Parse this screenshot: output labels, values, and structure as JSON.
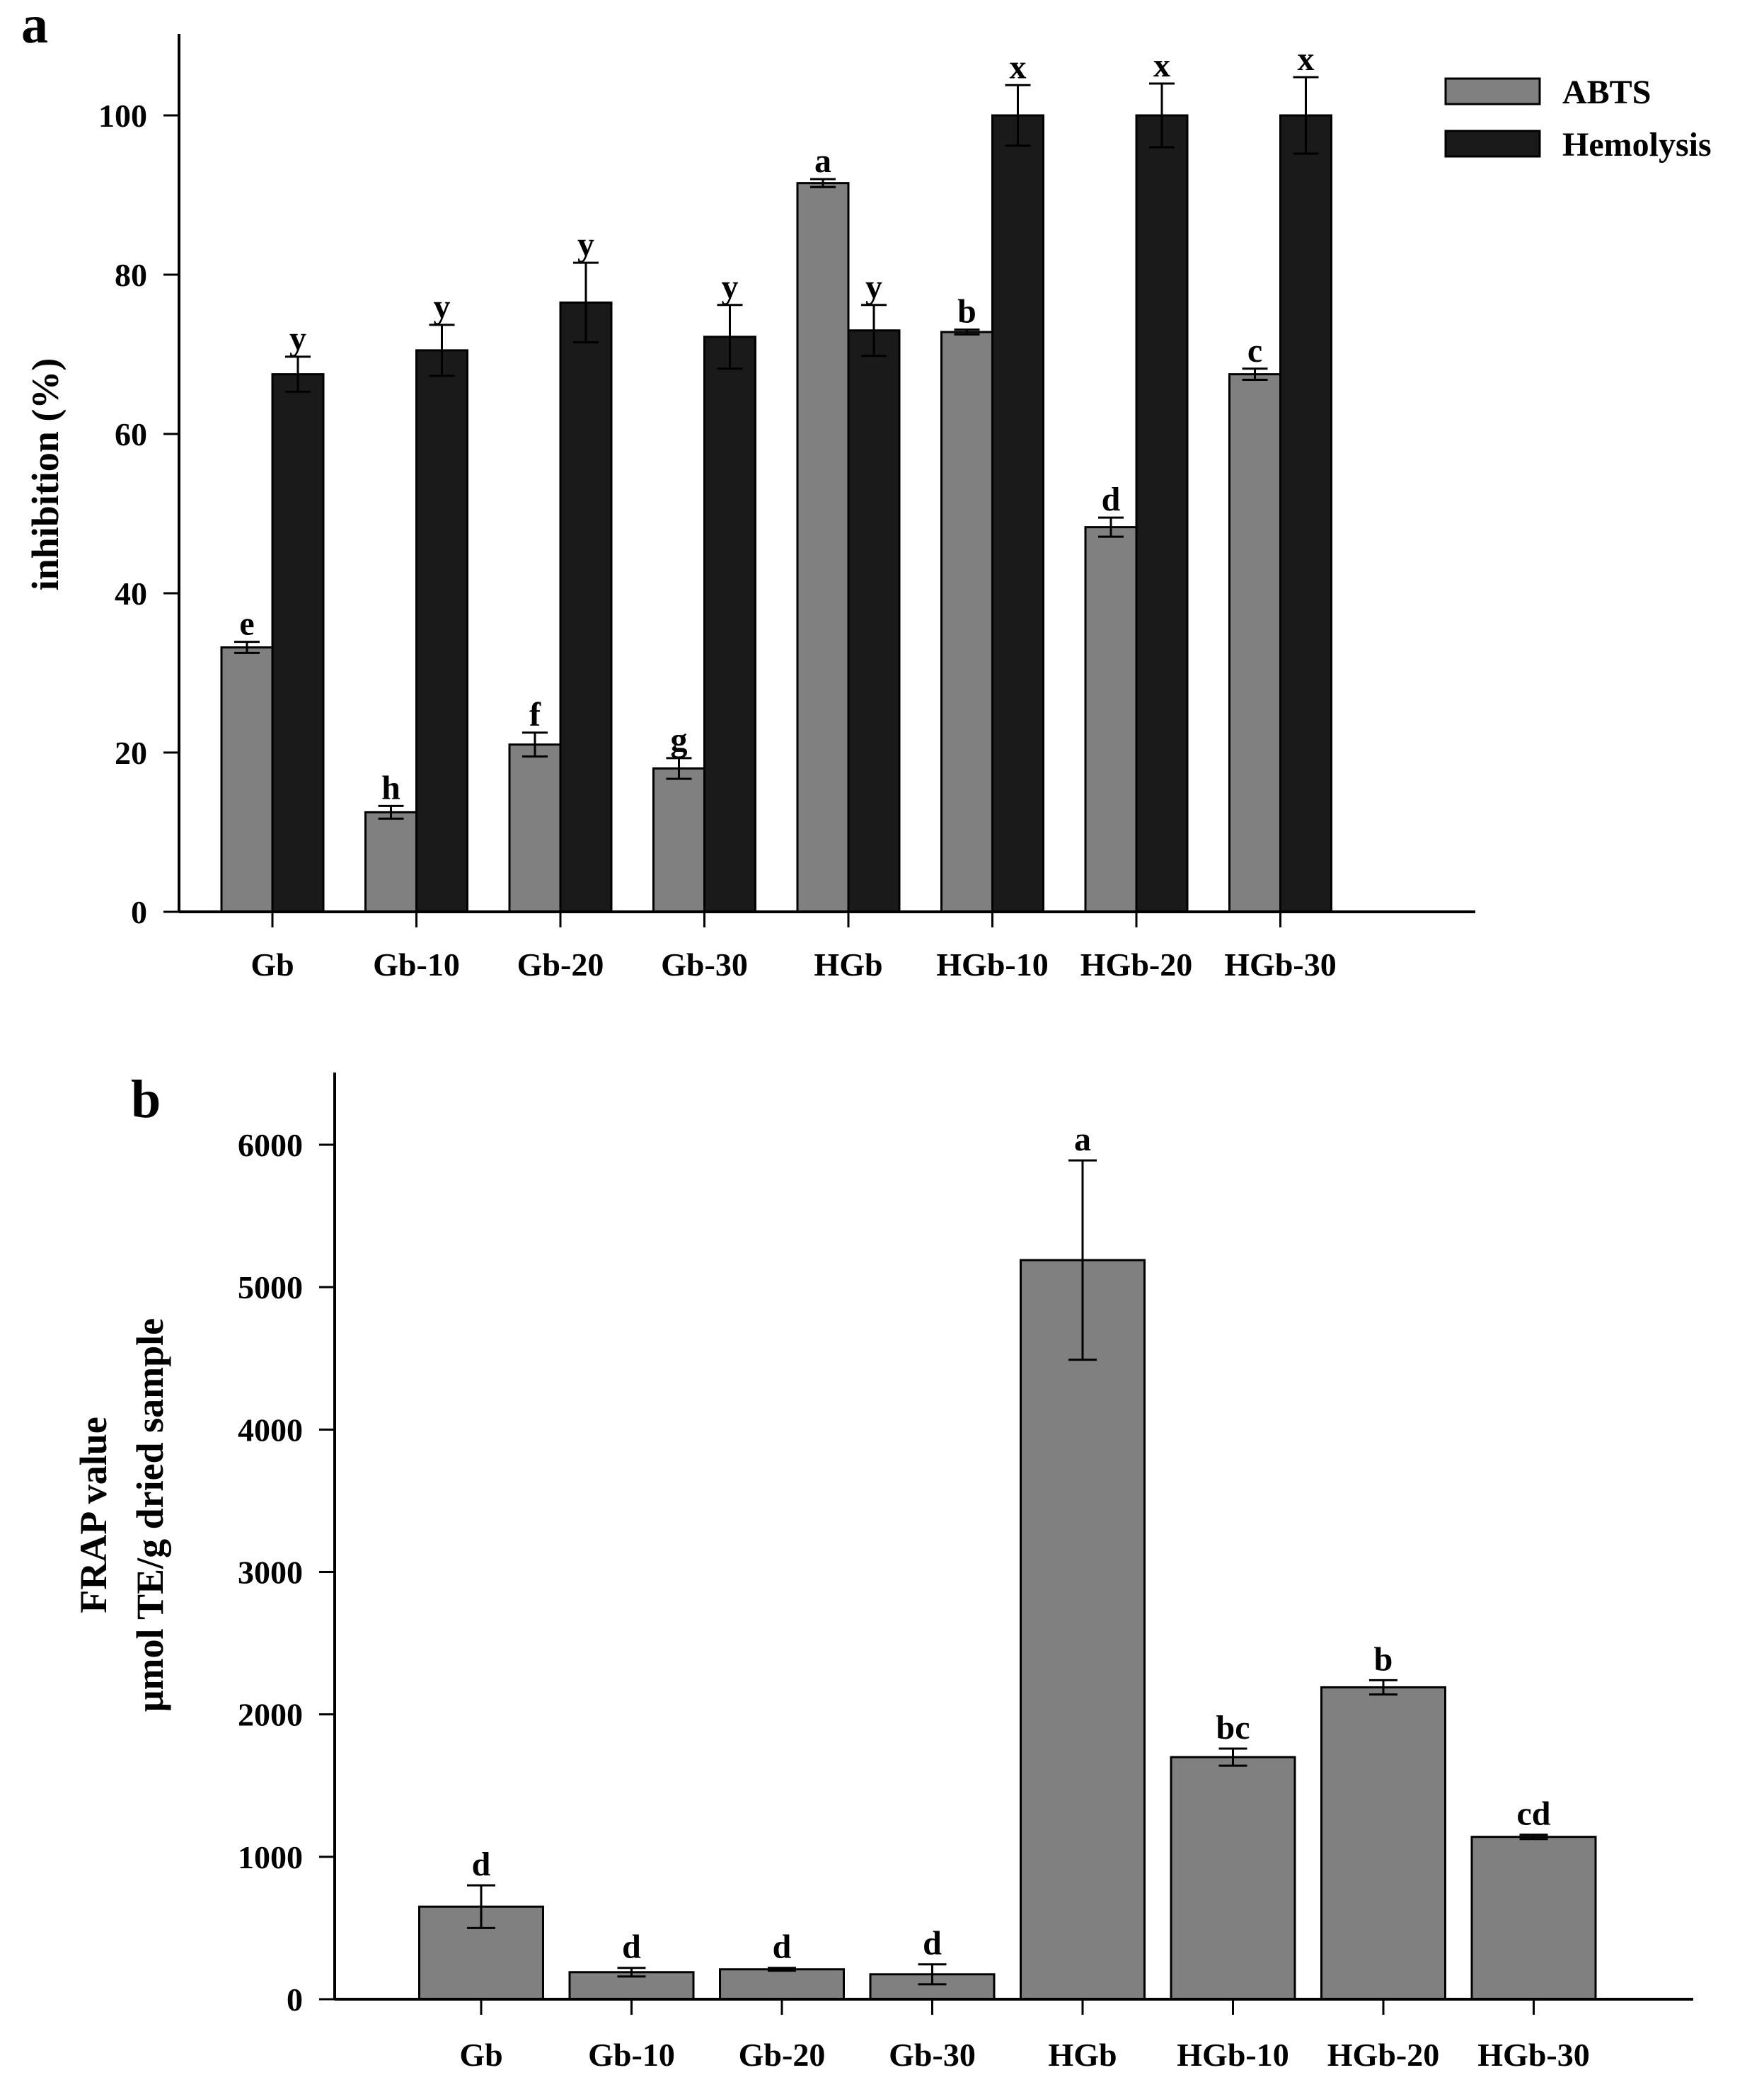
{
  "chart_data": [
    {
      "type": "bar",
      "panel": "a",
      "categories": [
        "Gb",
        "Gb-10",
        "Gb-20",
        "Gb-30",
        "HGb",
        "HGb-10",
        "HGb-20",
        "HGb-30"
      ],
      "series": [
        {
          "name": "ABTS",
          "color": "#808080",
          "values": [
            33.2,
            12.5,
            21.0,
            18.0,
            91.5,
            72.8,
            48.3,
            67.5
          ],
          "errors": [
            0.7,
            0.8,
            1.5,
            1.3,
            0.5,
            0.3,
            1.2,
            0.7
          ],
          "labels": [
            "e",
            "h",
            "f",
            "g",
            "a",
            "b",
            "d",
            "c"
          ]
        },
        {
          "name": "Hemolysis",
          "color": "#1a1a1a",
          "values": [
            67.5,
            70.5,
            76.5,
            72.2,
            73.0,
            100.0,
            100.0,
            100.0
          ],
          "errors": [
            2.2,
            3.2,
            5.0,
            4.0,
            3.2,
            3.8,
            4.0,
            4.8
          ],
          "labels": [
            "y",
            "y",
            "y",
            "y",
            "y",
            "x",
            "x",
            "x"
          ]
        }
      ],
      "title": "",
      "xlabel": "",
      "ylabel": "inhibition (%)",
      "ylim": [
        0,
        110
      ],
      "yticks": [
        "0",
        "20",
        "40",
        "60",
        "80",
        "100"
      ],
      "legend_position": "top-right",
      "grid": false
    },
    {
      "type": "bar",
      "panel": "b",
      "categories": [
        "Gb",
        "Gb-10",
        "Gb-20",
        "Gb-30",
        "HGb",
        "HGb-10",
        "HGb-20",
        "HGb-30"
      ],
      "series": [
        {
          "name": "FRAP",
          "color": "#808080",
          "values": [
            650,
            190,
            210,
            175,
            5190,
            1700,
            2190,
            1140
          ],
          "errors": [
            150,
            30,
            10,
            70,
            700,
            60,
            50,
            15
          ],
          "labels": [
            "d",
            "d",
            "d",
            "d",
            "a",
            "bc",
            "b",
            "cd"
          ]
        }
      ],
      "title": "",
      "xlabel": "",
      "ylabel_line1": "FRAP value",
      "ylabel_line2": "μmol TE/g dried sample",
      "ylim": [
        0,
        6500
      ],
      "yticks": [
        "0",
        "1000",
        "2000",
        "3000",
        "4000",
        "5000",
        "6000"
      ],
      "grid": false
    }
  ]
}
